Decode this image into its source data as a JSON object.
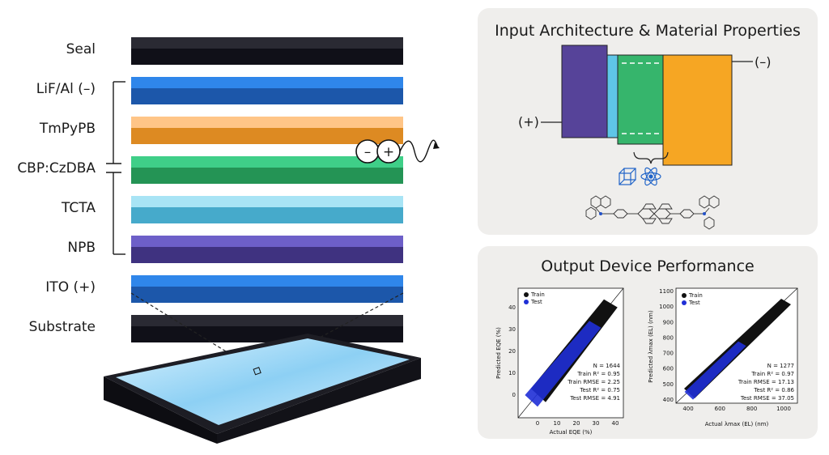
{
  "stack": {
    "layers": [
      {
        "label": "Seal",
        "top": "#2a2a33",
        "side": "#101018"
      },
      {
        "label": "LiF/Al (–)",
        "top": "#2f86ea",
        "side": "#1c57aa"
      },
      {
        "label": "TmPyPB",
        "top": "#ffc587",
        "side": "#dd8a22"
      },
      {
        "label": "CBP:CzDBA",
        "top": "#3fcf88",
        "side": "#249455"
      },
      {
        "label": "TCTA",
        "top": "#a8e4f5",
        "side": "#46aacb"
      },
      {
        "label": "NPB",
        "top": "#6d5fc8",
        "side": "#3f3280"
      },
      {
        "label": "ITO (+)",
        "top": "#2f86ea",
        "side": "#1c57aa"
      },
      {
        "label": "Substrate",
        "top": "#2a2a33",
        "side": "#101018"
      }
    ],
    "exciton": {
      "minus": "–",
      "plus": "+"
    }
  },
  "input_panel": {
    "title": "Input Architecture & Material Properties",
    "plus_label": "(+)",
    "minus_label": "(–)",
    "bands": [
      {
        "color": "#564399"
      },
      {
        "color": "#5fc6e8"
      },
      {
        "color": "#36b56c"
      },
      {
        "color": "#f6a623"
      }
    ]
  },
  "output_panel": {
    "title": "Output Device Performance",
    "eqe_plot": {
      "legend": [
        "Train",
        "Test"
      ],
      "xlabel": "Actual EQE (%)",
      "ylabel": "Predicted EQE (%)",
      "xticks": [
        "0",
        "10",
        "20",
        "30",
        "40"
      ],
      "yticks": [
        "0",
        "10",
        "20",
        "30",
        "40"
      ],
      "stats": [
        "N = 1644",
        "Train R² = 0.95",
        "Train RMSE = 2.25",
        "Test R² = 0.75",
        "Test RMSE = 4.91"
      ]
    },
    "el_plot": {
      "legend": [
        "Train",
        "Test"
      ],
      "xlabel": "Actual λmax (EL) (nm)",
      "ylabel": "Predicted λmax (EL) (nm)",
      "xticks": [
        "400",
        "600",
        "800",
        "1000"
      ],
      "yticks": [
        "400",
        "500",
        "600",
        "700",
        "800",
        "900",
        "1000",
        "1100"
      ],
      "stats": [
        "N = 1277",
        "Train R² = 0.97",
        "Train RMSE = 17.13",
        "Test R² = 0.86",
        "Test RMSE = 37.05"
      ]
    }
  }
}
